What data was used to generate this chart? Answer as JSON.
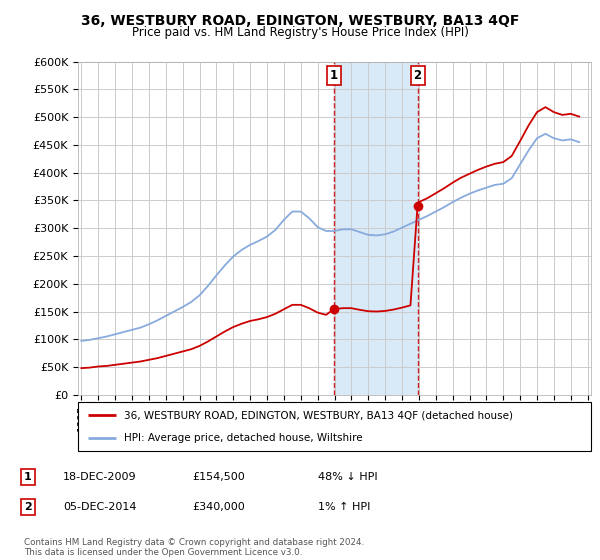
{
  "title": "36, WESTBURY ROAD, EDINGTON, WESTBURY, BA13 4QF",
  "subtitle": "Price paid vs. HM Land Registry's House Price Index (HPI)",
  "ylim": [
    0,
    600000
  ],
  "yticks": [
    0,
    50000,
    100000,
    150000,
    200000,
    250000,
    300000,
    350000,
    400000,
    450000,
    500000,
    550000,
    600000
  ],
  "ytick_labels": [
    "£0",
    "£50K",
    "£100K",
    "£150K",
    "£200K",
    "£250K",
    "£300K",
    "£350K",
    "£400K",
    "£450K",
    "£500K",
    "£550K",
    "£600K"
  ],
  "xlim_start": 1994.8,
  "xlim_end": 2025.2,
  "transaction1_x": 2009.97,
  "transaction1_y": 154500,
  "transaction2_x": 2014.92,
  "transaction2_y": 340000,
  "shade_x1": 2009.97,
  "shade_x2": 2014.92,
  "red_line_color": "#cc0000",
  "blue_line_color": "#88aadd",
  "shade_color": "#d8eaf8",
  "grid_color": "#cccccc",
  "legend1_label": "36, WESTBURY ROAD, EDINGTON, WESTBURY, BA13 4QF (detached house)",
  "legend2_label": "HPI: Average price, detached house, Wiltshire",
  "footer": "Contains HM Land Registry data © Crown copyright and database right 2024.\nThis data is licensed under the Open Government Licence v3.0.",
  "xticks": [
    1995,
    1996,
    1997,
    1998,
    1999,
    2000,
    2001,
    2002,
    2003,
    2004,
    2005,
    2006,
    2007,
    2008,
    2009,
    2010,
    2011,
    2012,
    2013,
    2014,
    2015,
    2016,
    2017,
    2018,
    2019,
    2020,
    2021,
    2022,
    2023,
    2024,
    2025
  ],
  "hpi_years": [
    1995,
    1995.5,
    1996,
    1996.5,
    1997,
    1997.5,
    1998,
    1998.5,
    1999,
    1999.5,
    2000,
    2000.5,
    2001,
    2001.5,
    2002,
    2002.5,
    2003,
    2003.5,
    2004,
    2004.5,
    2005,
    2005.5,
    2006,
    2006.5,
    2007,
    2007.5,
    2008,
    2008.5,
    2009,
    2009.5,
    2010,
    2010.5,
    2011,
    2011.5,
    2012,
    2012.5,
    2013,
    2013.5,
    2014,
    2014.5,
    2015,
    2015.5,
    2016,
    2016.5,
    2017,
    2017.5,
    2018,
    2018.5,
    2019,
    2019.5,
    2020,
    2020.5,
    2021,
    2021.5,
    2022,
    2022.5,
    2023,
    2023.5,
    2024,
    2024.5
  ],
  "hpi_values": [
    97000,
    99000,
    102000,
    105000,
    109000,
    113000,
    117000,
    121000,
    127000,
    134000,
    142000,
    150000,
    158000,
    167000,
    179000,
    196000,
    215000,
    233000,
    249000,
    261000,
    270000,
    277000,
    285000,
    297000,
    315000,
    330000,
    330000,
    318000,
    302000,
    295000,
    295000,
    298000,
    298000,
    293000,
    288000,
    287000,
    289000,
    294000,
    301000,
    308000,
    315000,
    322000,
    330000,
    338000,
    347000,
    355000,
    362000,
    368000,
    373000,
    378000,
    380000,
    390000,
    415000,
    440000,
    462000,
    470000,
    462000,
    458000,
    460000,
    455000
  ],
  "red_years": [
    1995,
    1995.5,
    1996,
    1996.5,
    1997,
    1997.5,
    1998,
    1998.5,
    1999,
    1999.5,
    2000,
    2000.5,
    2001,
    2001.5,
    2002,
    2002.5,
    2003,
    2003.5,
    2004,
    2004.5,
    2005,
    2005.5,
    2006,
    2006.5,
    2007,
    2007.5,
    2008,
    2008.5,
    2009,
    2009.5,
    2009.97,
    2009.97,
    2010,
    2010.5,
    2011,
    2011.5,
    2012,
    2012.5,
    2013,
    2013.5,
    2014,
    2014.5,
    2014.92,
    2014.92,
    2015,
    2015.5,
    2016,
    2016.5,
    2017,
    2017.5,
    2018,
    2018.5,
    2019,
    2019.5,
    2020,
    2020.5,
    2021,
    2021.5,
    2022,
    2022.5,
    2023,
    2023.5,
    2024,
    2024.5
  ],
  "red_values_raw": [
    48000,
    49000,
    51000,
    52000,
    54000,
    56000,
    58000,
    60000,
    63000,
    66000,
    70000,
    74000,
    78000,
    82000,
    88000,
    96000,
    105000,
    114000,
    122000,
    128000,
    133000,
    136000,
    140000,
    146000,
    154000,
    162000,
    162000,
    156000,
    148000,
    144000,
    154500,
    154500,
    154500,
    156000,
    156000,
    153000,
    150500,
    150000,
    151000,
    153500,
    157000,
    161000,
    340000,
    340000,
    347000,
    354000,
    363000,
    372000,
    382000,
    391000,
    398000,
    405000,
    411000,
    416000,
    419000,
    430000,
    457000,
    485000,
    509000,
    518000,
    509000,
    504000,
    506000,
    501000
  ]
}
